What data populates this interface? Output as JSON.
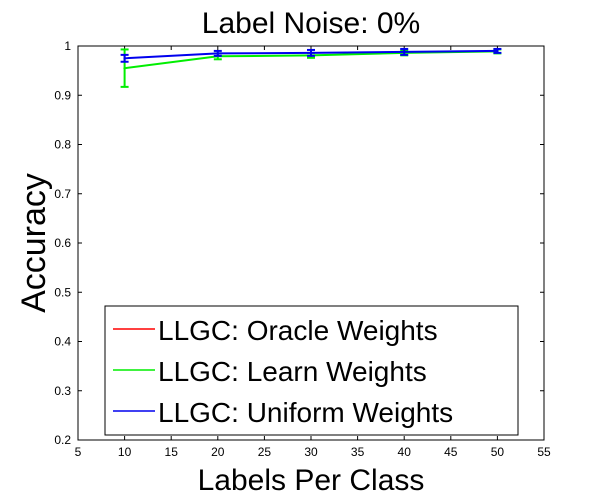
{
  "chart_data": {
    "type": "line",
    "title": "Label Noise: 0%",
    "xlabel": "Labels Per Class",
    "ylabel": "Accuracy",
    "xlim": [
      5,
      55
    ],
    "ylim": [
      0.2,
      1
    ],
    "xticks": [
      5,
      10,
      15,
      20,
      25,
      30,
      35,
      40,
      45,
      50,
      55
    ],
    "yticks": [
      0.2,
      0.3,
      0.4,
      0.5,
      0.6,
      0.7,
      0.8,
      0.9,
      1
    ],
    "ytick_labels": [
      "0.2",
      "0.3",
      "0.4",
      "0.5",
      "0.6",
      "0.7",
      "0.8",
      "0.9",
      "1"
    ],
    "grid": false,
    "legend_position": "bottom-left",
    "x": [
      10,
      20,
      30,
      40,
      50
    ],
    "series": [
      {
        "name": "LLGC: Oracle Weights",
        "color": "#ff0000",
        "values": [
          0.975,
          0.985,
          0.986,
          0.988,
          0.99
        ],
        "errors": [
          0.007,
          0.005,
          0.005,
          0.005,
          0.004
        ],
        "draw": false
      },
      {
        "name": "LLGC: Learn Weights",
        "color": "#00ee00",
        "values": [
          0.955,
          0.979,
          0.981,
          0.986,
          0.989
        ],
        "errors": [
          0.038,
          0.006,
          0.005,
          0.005,
          0.004
        ],
        "draw": true
      },
      {
        "name": "LLGC: Uniform Weights",
        "color": "#0000ee",
        "values": [
          0.975,
          0.985,
          0.986,
          0.988,
          0.99
        ],
        "errors": [
          0.007,
          0.005,
          0.006,
          0.006,
          0.004
        ],
        "draw": true
      }
    ]
  }
}
